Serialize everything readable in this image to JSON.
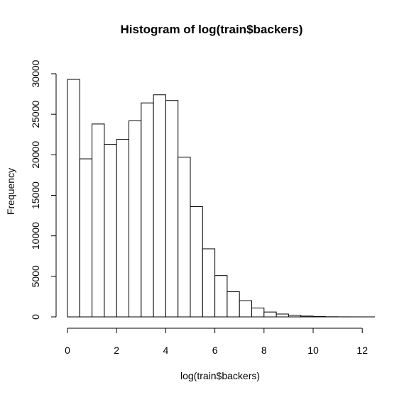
{
  "chart_data": {
    "type": "bar",
    "title": "Histogram of log(train$backers)",
    "xlabel": "log(train$backers)",
    "ylabel": "Frequency",
    "bin_width": 0.5,
    "bin_start": 0,
    "values": [
      29300,
      19500,
      23800,
      21300,
      21900,
      24200,
      26400,
      27400,
      26700,
      19700,
      13600,
      8400,
      5100,
      3100,
      2000,
      1100,
      600,
      350,
      200,
      100,
      40,
      15,
      5,
      2,
      1
    ],
    "xlim": [
      0,
      12.5
    ],
    "ylim": [
      0,
      30000
    ],
    "x_ticks": [
      0,
      2,
      4,
      6,
      8,
      10,
      12
    ],
    "y_ticks": [
      0,
      5000,
      10000,
      15000,
      20000,
      25000,
      30000
    ],
    "grid": false,
    "bar_fill": "#ffffff",
    "bar_stroke": "#000000"
  }
}
